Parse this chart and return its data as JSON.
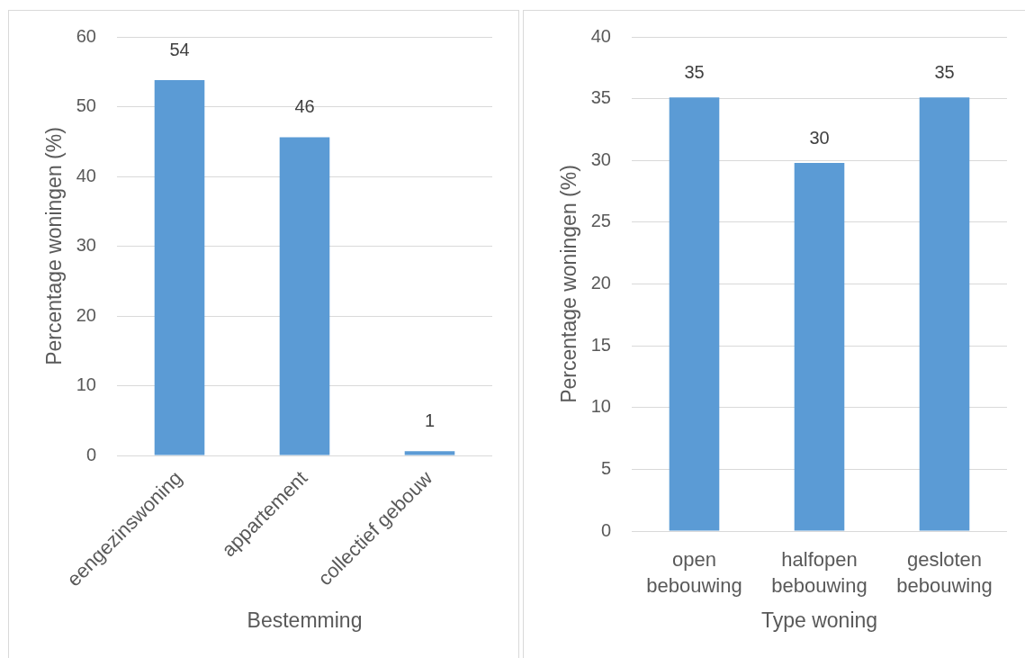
{
  "chart_data": [
    {
      "type": "bar",
      "xlabel": "Bestemming",
      "ylabel": "Percentage woningen (%)",
      "categories": [
        "eengezinswoning",
        "appartement",
        "collectief gebouw"
      ],
      "values": [
        53.8,
        45.6,
        0.6
      ],
      "value_labels": [
        "54",
        "46",
        "1"
      ],
      "color": "#5b9bd5",
      "ylim": [
        0,
        60
      ],
      "yticks": [
        0,
        10,
        20,
        30,
        40,
        50,
        60
      ],
      "grid": "y"
    },
    {
      "type": "bar",
      "xlabel": "Type woning",
      "ylabel": "Percentage woningen (%)",
      "categories": [
        "open bebouwing",
        "halfopen bebouwing",
        "gesloten bebouwing"
      ],
      "values": [
        35.1,
        29.8,
        35.1
      ],
      "value_labels": [
        "35",
        "30",
        "35"
      ],
      "color": "#5b9bd5",
      "ylim": [
        0,
        40
      ],
      "yticks": [
        0,
        5,
        10,
        15,
        20,
        25,
        30,
        35,
        40
      ],
      "grid": "y"
    }
  ]
}
